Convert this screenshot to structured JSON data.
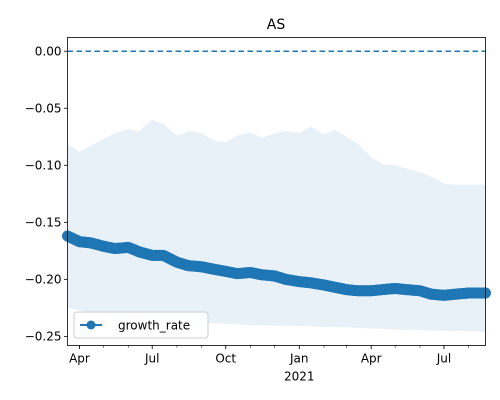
{
  "chart_data": {
    "type": "line",
    "title": "AS",
    "xlabel": "",
    "ylabel": "",
    "x_range": [
      "2020-03-17",
      "2021-08-22"
    ],
    "ylim": [
      -0.258,
      0.012
    ],
    "x_ticks": [
      {
        "date": "2020-04-01",
        "label": "Apr"
      },
      {
        "date": "2020-07-01",
        "label": "Jul"
      },
      {
        "date": "2020-10-01",
        "label": "Oct"
      },
      {
        "date": "2021-01-01",
        "label": "Jan"
      },
      {
        "date": "2021-04-01",
        "label": "Apr"
      },
      {
        "date": "2021-07-01",
        "label": "Jul"
      }
    ],
    "x_year_label": {
      "date": "2021-01-01",
      "label": "2021"
    },
    "y_ticks": [
      0.0,
      -0.05,
      -0.1,
      -0.15,
      -0.2,
      -0.25
    ],
    "y_tick_labels": [
      "0.00",
      "−0.05",
      "−0.10",
      "−0.15",
      "−0.20",
      "−0.25"
    ],
    "reference_line": {
      "y": 0.0,
      "style": "dashed",
      "color": "#1f77b4"
    },
    "series": [
      {
        "name": "growth_rate",
        "color": "#1f77b4",
        "marker": "circle",
        "points": [
          {
            "x": "2020-03-17",
            "y": -0.162
          },
          {
            "x": "2020-04-01",
            "y": -0.167
          },
          {
            "x": "2020-04-15",
            "y": -0.168
          },
          {
            "x": "2020-05-01",
            "y": -0.171
          },
          {
            "x": "2020-05-15",
            "y": -0.173
          },
          {
            "x": "2020-06-01",
            "y": -0.172
          },
          {
            "x": "2020-06-15",
            "y": -0.176
          },
          {
            "x": "2020-07-01",
            "y": -0.179
          },
          {
            "x": "2020-07-15",
            "y": -0.179
          },
          {
            "x": "2020-08-01",
            "y": -0.185
          },
          {
            "x": "2020-08-15",
            "y": -0.188
          },
          {
            "x": "2020-09-01",
            "y": -0.189
          },
          {
            "x": "2020-09-15",
            "y": -0.191
          },
          {
            "x": "2020-10-01",
            "y": -0.193
          },
          {
            "x": "2020-10-15",
            "y": -0.195
          },
          {
            "x": "2020-11-01",
            "y": -0.194
          },
          {
            "x": "2020-11-15",
            "y": -0.196
          },
          {
            "x": "2020-12-01",
            "y": -0.197
          },
          {
            "x": "2020-12-15",
            "y": -0.2
          },
          {
            "x": "2021-01-01",
            "y": -0.202
          },
          {
            "x": "2021-01-15",
            "y": -0.203
          },
          {
            "x": "2021-02-01",
            "y": -0.205
          },
          {
            "x": "2021-02-15",
            "y": -0.207
          },
          {
            "x": "2021-03-01",
            "y": -0.209
          },
          {
            "x": "2021-03-15",
            "y": -0.21
          },
          {
            "x": "2021-04-01",
            "y": -0.21
          },
          {
            "x": "2021-04-15",
            "y": -0.209
          },
          {
            "x": "2021-05-01",
            "y": -0.208
          },
          {
            "x": "2021-05-15",
            "y": -0.209
          },
          {
            "x": "2021-06-01",
            "y": -0.21
          },
          {
            "x": "2021-06-15",
            "y": -0.213
          },
          {
            "x": "2021-07-01",
            "y": -0.214
          },
          {
            "x": "2021-07-15",
            "y": -0.213
          },
          {
            "x": "2021-08-01",
            "y": -0.212
          },
          {
            "x": "2021-08-22",
            "y": -0.212
          }
        ]
      }
    ],
    "confidence_band": {
      "color": "#1f77b4",
      "opacity": 0.1,
      "upper": [
        {
          "x": "2020-03-17",
          "y": -0.081
        },
        {
          "x": "2020-04-01",
          "y": -0.088
        },
        {
          "x": "2020-04-15",
          "y": -0.083
        },
        {
          "x": "2020-05-01",
          "y": -0.077
        },
        {
          "x": "2020-05-15",
          "y": -0.072
        },
        {
          "x": "2020-06-01",
          "y": -0.068
        },
        {
          "x": "2020-06-15",
          "y": -0.07
        },
        {
          "x": "2020-07-01",
          "y": -0.06
        },
        {
          "x": "2020-07-15",
          "y": -0.064
        },
        {
          "x": "2020-08-01",
          "y": -0.074
        },
        {
          "x": "2020-08-15",
          "y": -0.07
        },
        {
          "x": "2020-09-01",
          "y": -0.072
        },
        {
          "x": "2020-09-15",
          "y": -0.078
        },
        {
          "x": "2020-10-01",
          "y": -0.08
        },
        {
          "x": "2020-10-15",
          "y": -0.074
        },
        {
          "x": "2020-11-01",
          "y": -0.071
        },
        {
          "x": "2020-11-15",
          "y": -0.076
        },
        {
          "x": "2020-12-01",
          "y": -0.072
        },
        {
          "x": "2020-12-15",
          "y": -0.07
        },
        {
          "x": "2021-01-01",
          "y": -0.072
        },
        {
          "x": "2021-01-15",
          "y": -0.066
        },
        {
          "x": "2021-02-01",
          "y": -0.073
        },
        {
          "x": "2021-02-15",
          "y": -0.069
        },
        {
          "x": "2021-03-01",
          "y": -0.075
        },
        {
          "x": "2021-03-15",
          "y": -0.081
        },
        {
          "x": "2021-04-01",
          "y": -0.093
        },
        {
          "x": "2021-04-15",
          "y": -0.099
        },
        {
          "x": "2021-05-01",
          "y": -0.1
        },
        {
          "x": "2021-05-15",
          "y": -0.103
        },
        {
          "x": "2021-06-01",
          "y": -0.106
        },
        {
          "x": "2021-06-15",
          "y": -0.11
        },
        {
          "x": "2021-07-01",
          "y": -0.116
        },
        {
          "x": "2021-07-15",
          "y": -0.117
        },
        {
          "x": "2021-08-01",
          "y": -0.117
        },
        {
          "x": "2021-08-22",
          "y": -0.117
        }
      ],
      "lower": [
        {
          "x": "2020-03-17",
          "y": -0.225
        },
        {
          "x": "2020-05-01",
          "y": -0.231
        },
        {
          "x": "2020-07-01",
          "y": -0.236
        },
        {
          "x": "2020-09-01",
          "y": -0.238
        },
        {
          "x": "2020-11-01",
          "y": -0.24
        },
        {
          "x": "2021-01-01",
          "y": -0.241
        },
        {
          "x": "2021-03-01",
          "y": -0.242
        },
        {
          "x": "2021-05-01",
          "y": -0.244
        },
        {
          "x": "2021-07-01",
          "y": -0.245
        },
        {
          "x": "2021-08-22",
          "y": -0.246
        }
      ]
    },
    "legend": {
      "position": "lower-left",
      "entries": [
        "growth_rate"
      ]
    },
    "grid": false
  }
}
